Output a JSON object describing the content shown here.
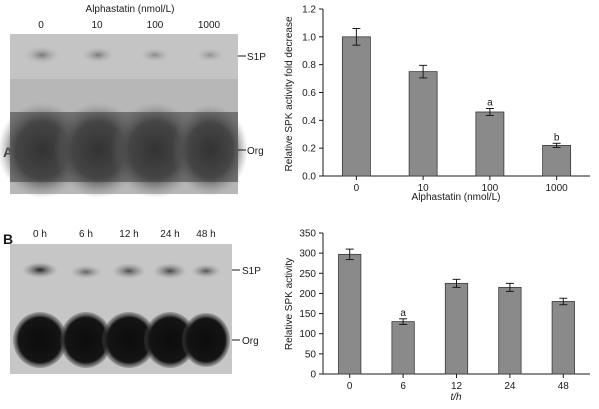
{
  "panel_a": {
    "letter": "A",
    "blot": {
      "header": "Alphastatin (nmol/L)",
      "lanes": [
        "0",
        "10",
        "100",
        "1000"
      ],
      "band_labels": [
        "S1P",
        "Org"
      ]
    }
  },
  "panel_b": {
    "letter": "B",
    "blot": {
      "lanes": [
        "0 h",
        "6 h",
        "12 h",
        "24 h",
        "48 h"
      ],
      "band_labels": [
        "S1P",
        "Org"
      ]
    }
  },
  "chart_data": [
    {
      "type": "bar",
      "categories": [
        "0",
        "10",
        "100",
        "1000"
      ],
      "values": [
        1.0,
        0.75,
        0.46,
        0.22
      ],
      "errors": [
        0.06,
        0.045,
        0.025,
        0.015
      ],
      "annotations": [
        "",
        "",
        "a",
        "b"
      ],
      "xlabel": "Alphastatin (nmol/L)",
      "ylabel": "Relative SPK activity fold decrease",
      "ylim": [
        0,
        1.2
      ],
      "yticks": [
        "0.0",
        "0.2",
        "0.4",
        "0.6",
        "0.8",
        "1.0",
        "1.2"
      ],
      "bar_color": "#8a8a8a"
    },
    {
      "type": "bar",
      "categories": [
        "0",
        "6",
        "12",
        "24",
        "48"
      ],
      "values": [
        297,
        130,
        225,
        215,
        180
      ],
      "errors": [
        13,
        7,
        10,
        10,
        8
      ],
      "annotations": [
        "",
        "a",
        "",
        "",
        ""
      ],
      "xlabel": "t/h",
      "ylabel": "Relative SPK activity",
      "ylim": [
        0,
        350
      ],
      "yticks": [
        "0",
        "50",
        "100",
        "150",
        "200",
        "250",
        "300",
        "350"
      ],
      "bar_color": "#8a8a8a"
    }
  ]
}
